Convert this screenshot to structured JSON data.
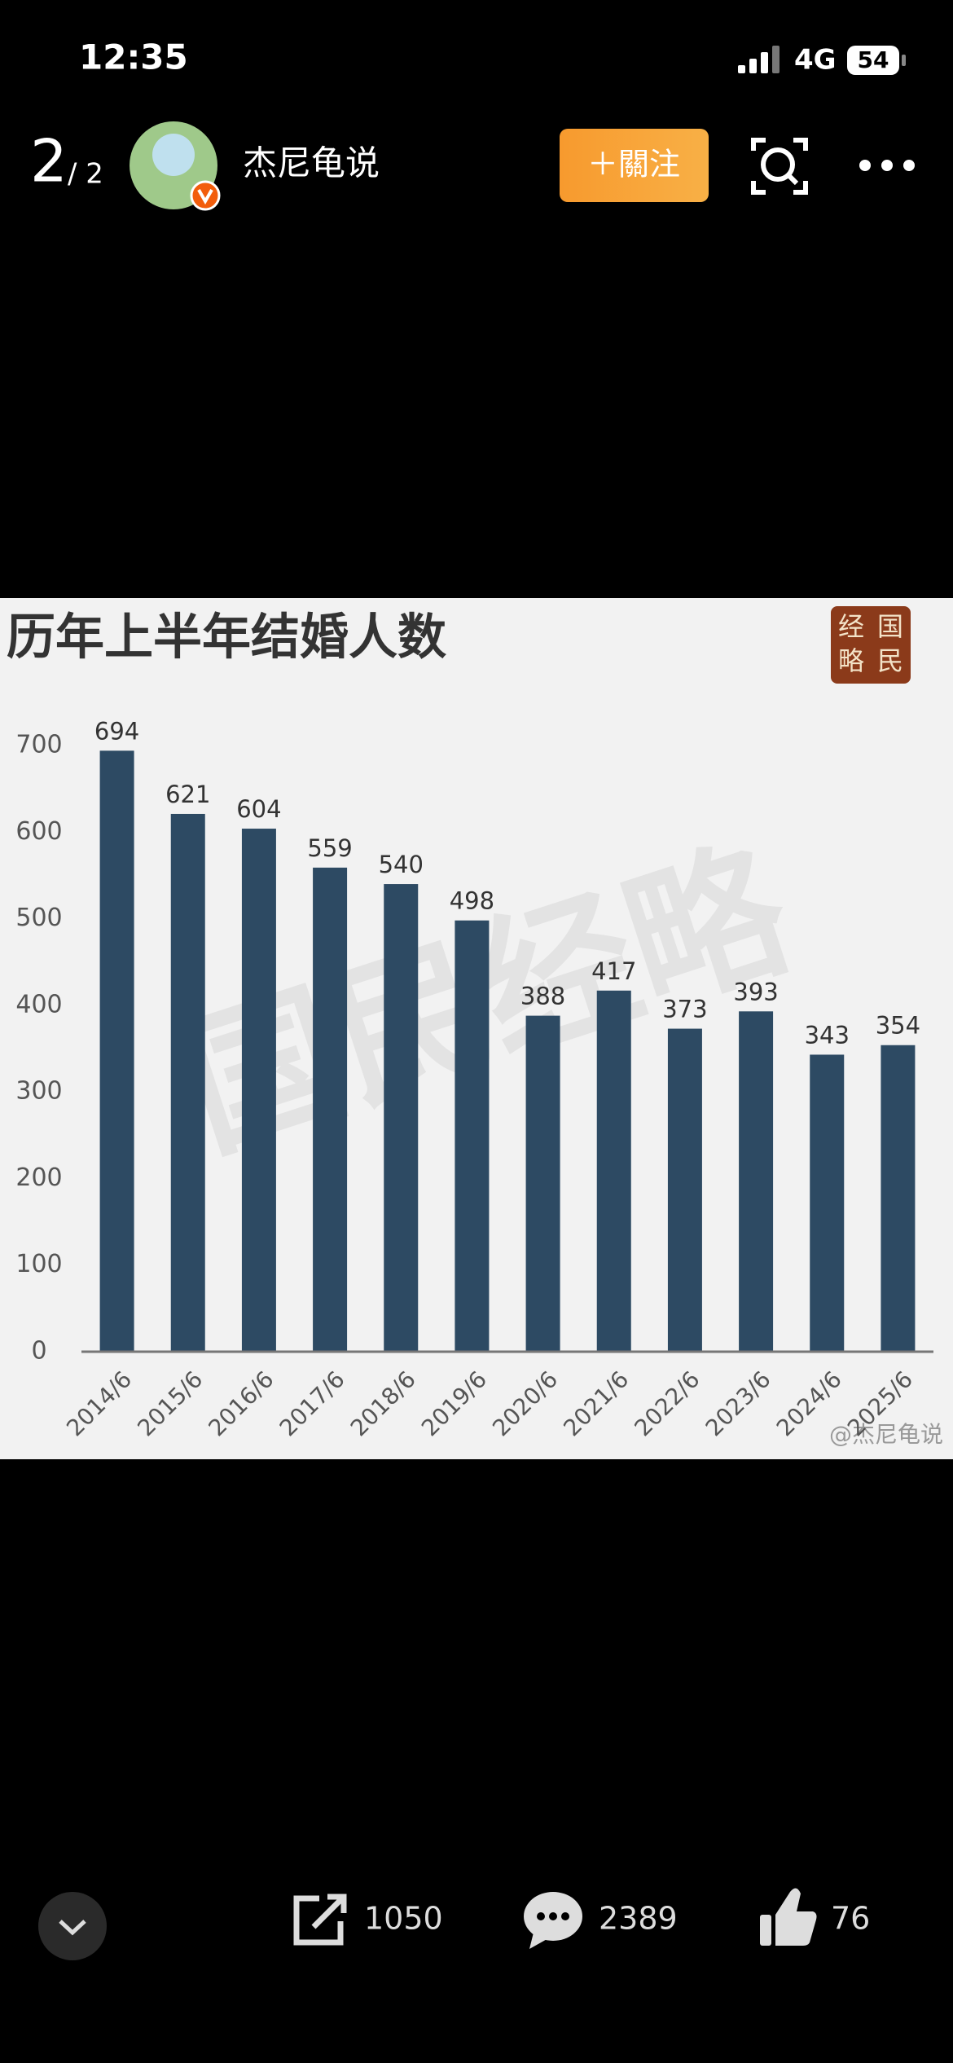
{
  "status_bar": {
    "time": "12:35",
    "network": "4G",
    "battery": "54"
  },
  "header": {
    "page_current": "2",
    "page_total": "/ 2",
    "username": "杰尼龟说",
    "follow_button": "＋關注"
  },
  "chart_data": {
    "type": "bar",
    "title": "历年上半年结婚人数",
    "logo": [
      "国",
      "民",
      "经",
      "略"
    ],
    "watermark": "国民经略",
    "credit": "@杰尼龟说",
    "categories": [
      "2014/6",
      "2015/6",
      "2016/6",
      "2017/6",
      "2018/6",
      "2019/6",
      "2020/6",
      "2021/6",
      "2022/6",
      "2023/6",
      "2024/6",
      "2025/6"
    ],
    "values": [
      694,
      621,
      604,
      559,
      540,
      498,
      388,
      417,
      373,
      393,
      343,
      354
    ],
    "color": "#2d4a63",
    "ylim": [
      0,
      700
    ],
    "yticks": [
      0,
      100,
      200,
      300,
      400,
      500,
      600,
      700
    ],
    "grid": false
  },
  "footer": {
    "share_count": 1050,
    "comment_count": 2389,
    "like_count": 76
  }
}
